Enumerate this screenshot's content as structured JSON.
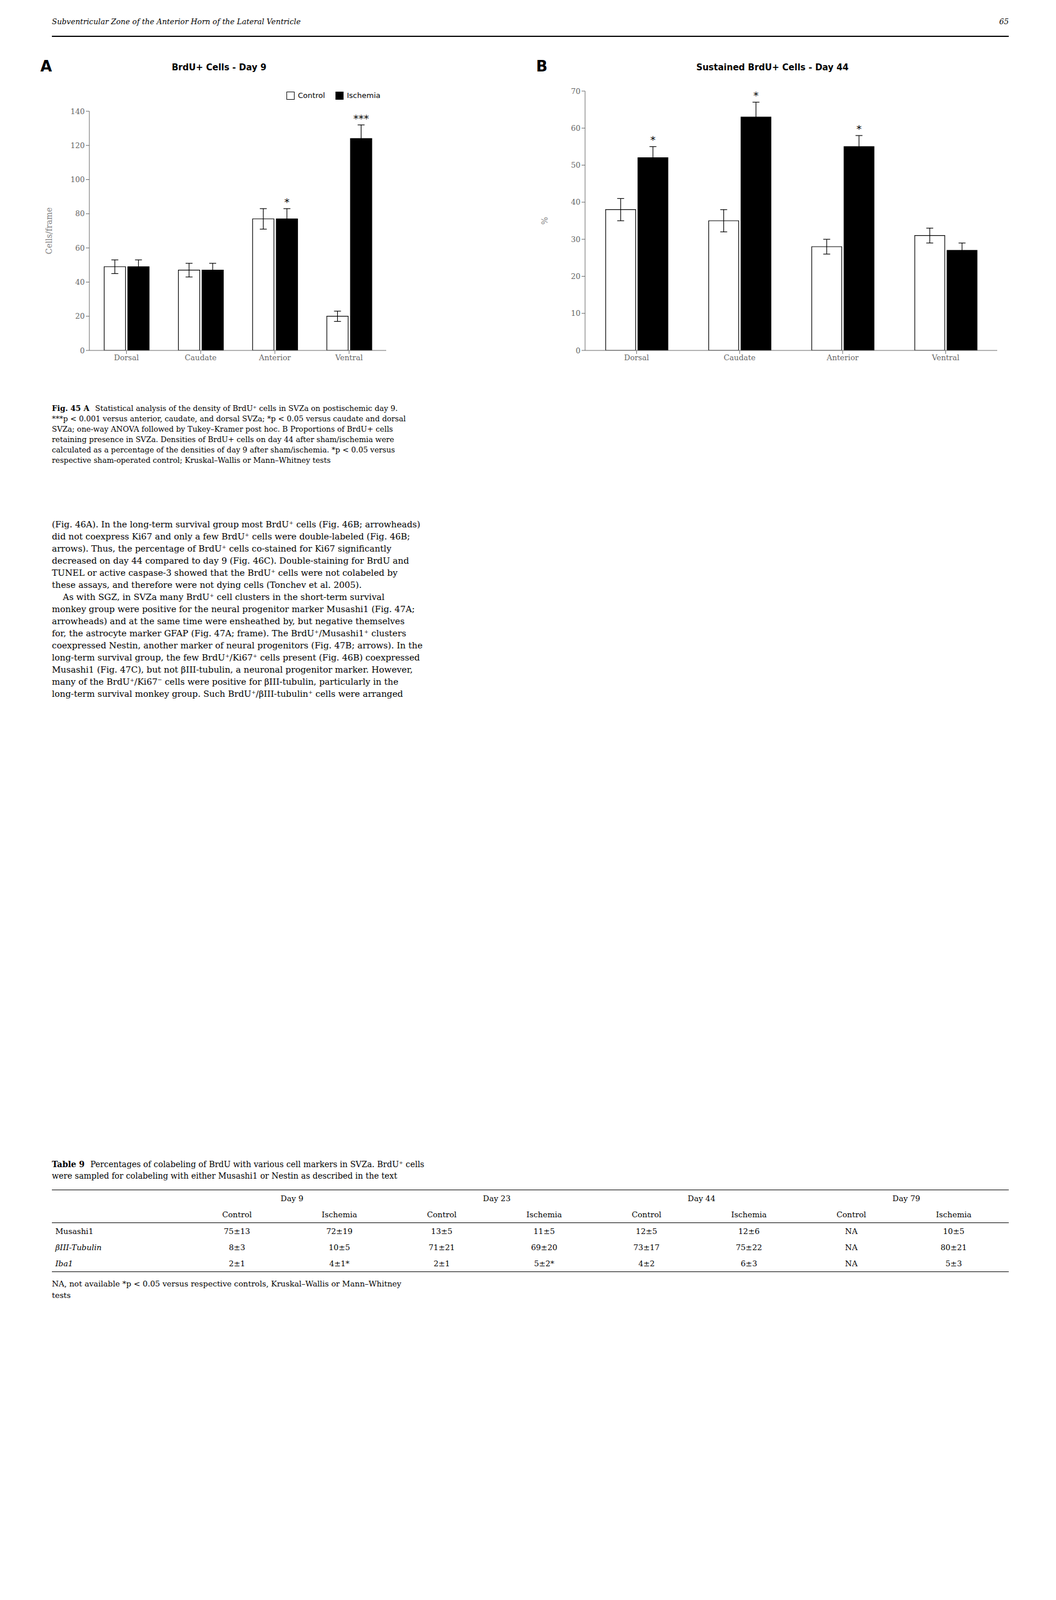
{
  "page_header": "Subventricular Zone of the Anterior Horn of the Lateral Ventricle",
  "page_number": "65",
  "chart_data": [
    {
      "type": "bar",
      "panel_label": "A",
      "title": "BrdU+ Cells - Day 9",
      "ylabel": "Cells/frame",
      "categories": [
        "Dorsal",
        "Caudate",
        "Anterior",
        "Ventral"
      ],
      "series": [
        {
          "name": "Control",
          "color": "white",
          "values": [
            49,
            47,
            77,
            20
          ],
          "errors": [
            4,
            4,
            6,
            3
          ]
        },
        {
          "name": "Ischemia",
          "color": "black",
          "values": [
            49,
            47,
            77,
            124
          ],
          "errors": [
            4,
            4,
            6,
            8
          ]
        }
      ],
      "ylim": [
        0,
        140
      ],
      "yticks": [
        0,
        20,
        40,
        60,
        80,
        100,
        120,
        140
      ],
      "legend": "upper right",
      "annotations": [
        {
          "category": "Anterior",
          "series": "Ischemia",
          "text": "*"
        },
        {
          "category": "Ventral",
          "series": "Ischemia",
          "text": "***"
        }
      ]
    },
    {
      "type": "bar",
      "panel_label": "B",
      "title": "Sustained BrdU+ Cells - Day 44",
      "ylabel": "%",
      "categories": [
        "Dorsal",
        "Caudate",
        "Anterior",
        "Ventral"
      ],
      "series": [
        {
          "name": "Control",
          "color": "white",
          "values": [
            38,
            35,
            28,
            31
          ],
          "errors": [
            3,
            3,
            2,
            2
          ]
        },
        {
          "name": "Ischemia",
          "color": "black",
          "values": [
            52,
            63,
            55,
            27
          ],
          "errors": [
            3,
            4,
            3,
            2
          ]
        }
      ],
      "ylim": [
        0,
        70
      ],
      "yticks": [
        0,
        10,
        20,
        30,
        40,
        50,
        60,
        70
      ],
      "annotations": [
        {
          "category": "Dorsal",
          "series": "Ischemia",
          "text": "*"
        },
        {
          "category": "Caudate",
          "series": "Ischemia",
          "text": "*"
        },
        {
          "category": "Anterior",
          "series": "Ischemia",
          "text": "*"
        }
      ]
    }
  ],
  "caption": {
    "bold": "Fig. 45 A",
    "lines": [
      "Statistical analysis of the density of BrdU⁺ cells in SVZa on postischemic day 9.",
      "***p < 0.001 versus anterior, caudate, and dorsal SVZa; *p < 0.05 versus caudate and dorsal",
      "SVZa; one-way ANOVA followed by Tukey–Kramer post hoc. B Proportions of BrdU+ cells",
      "retaining presence in SVZa. Densities of BrdU+ cells on day 44 after sham/ischemia were",
      "calculated as a percentage of the densities of day 9 after sham/ischemia. *p < 0.05 versus",
      "respective sham-operated control; Kruskal–Wallis or Mann–Whitney tests"
    ]
  },
  "body": [
    "(Fig. 46A). In the long-term survival group most BrdU⁺ cells (Fig. 46B; arrowheads)",
    "did not coexpress Ki67 and only a few BrdU⁺ cells were double-labeled (Fig. 46B;",
    "arrows). Thus, the percentage of BrdU⁺ cells co-stained for Ki67 significantly",
    "decreased on day 44 compared to day 9 (Fig. 46C). Double-staining for BrdU and",
    "TUNEL or active caspase-3 showed that the BrdU⁺ cells were not colabeled by",
    "these assays, and therefore were not dying cells (Tonchev et al. 2005).",
    "    As with SGZ, in SVZa many BrdU⁺ cell clusters in the short-term survival",
    "monkey group were positive for the neural progenitor marker Musashi1 (Fig. 47A;",
    "arrowheads) and at the same time were ensheathed by, but negative themselves",
    "for, the astrocyte marker GFAP (Fig. 47A; frame). The BrdU⁺/Musashi1⁺ clusters",
    "coexpressed Nestin, another marker of neural progenitors (Fig. 47B; arrows). In the",
    "long-term survival group, the few BrdU⁺/Ki67⁺ cells present (Fig. 46B) coexpressed",
    "Musashi1 (Fig. 47C), but not βIII-tubulin, a neuronal progenitor marker. However,",
    "many of the BrdU⁺/Ki67⁻ cells were positive for βIII-tubulin, particularly in the",
    "long-term survival monkey group. Such BrdU⁺/βIII-tubulin⁺ cells were arranged"
  ],
  "table": {
    "title_bold": "Table 9",
    "title_lines": [
      "Percentages of colabeling of BrdU with various cell markers in SVZa. BrdU⁺ cells",
      "were sampled for colabeling with either Musashi1 or Nestin as described in the text"
    ],
    "groups": [
      "Day 9",
      "Day 23",
      "Day 44",
      "Day 79"
    ],
    "subheaders": [
      "Control",
      "Ischemia",
      "Control",
      "Ischemia",
      "Control",
      "Ischemia",
      "Control",
      "Ischemia"
    ],
    "rows": [
      [
        "Musashi1",
        "75±13",
        "72±19",
        "13±5",
        "11±5",
        "12±5",
        "12±6",
        "NA",
        "10±5"
      ],
      [
        "βIII-Tubulin",
        "8±3",
        "10±5",
        "71±21",
        "69±20",
        "73±17",
        "75±22",
        "NA",
        "80±21"
      ],
      [
        "Iba1",
        "2±1",
        "4±1*",
        "2±1",
        "5±2*",
        "4±2",
        "6±3",
        "NA",
        "5±3"
      ]
    ],
    "footnote": [
      "NA, not available *p < 0.05 versus respective controls, Kruskal–Wallis or Mann–Whitney",
      "tests"
    ]
  }
}
